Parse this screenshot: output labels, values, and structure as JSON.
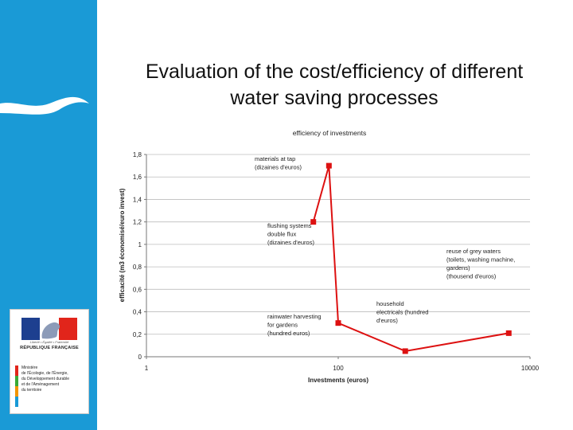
{
  "slide": {
    "title": "Evaluation of the cost/efficiency of different water saving processes"
  },
  "logo": {
    "motto": "Liberté • Égalité • Fraternité",
    "republic": "RÉPUBLIQUE FRANÇAISE",
    "ministry": "Ministère\nde l'Écologie, de l'Énergie,\ndu Développement durable\net de l'Aménagement\ndu territoire"
  },
  "colors": {
    "sidebar": "#1a9ad6",
    "series": "#dd1111",
    "grid": "#bdbdbd"
  },
  "chart_data": {
    "type": "line",
    "title": "efficiency of investments",
    "xlabel": "Investments (euros)",
    "ylabel": "efficacité (m3 économisé/euro invest)",
    "xscale": "log",
    "xlim": [
      1,
      10000
    ],
    "ylim": [
      0,
      1.8
    ],
    "xticks": [
      1,
      100,
      10000
    ],
    "xtick_labels": [
      "1",
      "100",
      "10000"
    ],
    "yticks": [
      0,
      0.2,
      0.4,
      0.6,
      0.8,
      1,
      1.2,
      1.4,
      1.6,
      1.8
    ],
    "ytick_labels": [
      "0",
      "0,2",
      "0,4",
      "0,6",
      "0,8",
      "1",
      "1,2",
      "1,4",
      "1,6",
      "1,8"
    ],
    "grid": true,
    "legend": "none",
    "series": [
      {
        "x": [
          55,
          80,
          100,
          500,
          6000
        ],
        "y": [
          1.2,
          1.7,
          0.3,
          0.05,
          0.21
        ]
      }
    ],
    "annotations": [
      {
        "lines": [
          "materials at tap",
          "(dizaines d'euros)"
        ]
      },
      {
        "lines": [
          "flushing systems",
          "double flux",
          "(dizaines d'euros)"
        ]
      },
      {
        "lines": [
          "rainwater harvesting",
          "for gardens",
          "(hundred euros)"
        ]
      },
      {
        "lines": [
          "household",
          "electricals (hundred",
          "d'euros)"
        ]
      },
      {
        "lines": [
          "reuse of grey waters",
          "(toilets, washing machine,",
          "gardens)",
          "(thousend d'euros)"
        ]
      }
    ]
  }
}
